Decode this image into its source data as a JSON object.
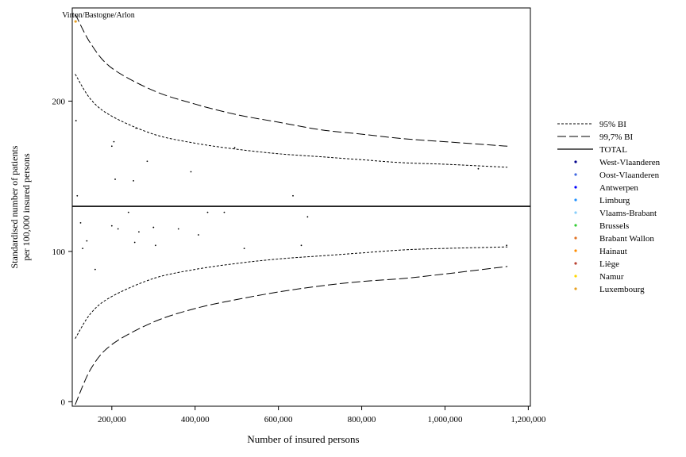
{
  "chart_data": {
    "type": "scatter",
    "title": "",
    "xlabel": "Number of insured persons",
    "ylabel_lines": [
      "Standardised number of patients",
      "per 100,000 insured persons"
    ],
    "xlim": [
      105000,
      1205000
    ],
    "ylim": [
      -3,
      262
    ],
    "x_ticks": [
      200000,
      400000,
      600000,
      800000,
      1000000,
      1200000
    ],
    "x_tick_labels": [
      "200,000",
      "400,000",
      "600,000",
      "800,000",
      "1,000,000",
      "1,200,000"
    ],
    "y_ticks": [
      0,
      100,
      200
    ],
    "y_tick_labels": [
      "0",
      "100",
      "200"
    ],
    "grid": false,
    "legend_position": "right",
    "total": {
      "name": "TOTAL",
      "value": 130
    },
    "bands": [
      {
        "name": "95% BI",
        "dash": "dotted",
        "upper": [
          [
            112000,
            218
          ],
          [
            150000,
            201
          ],
          [
            200000,
            190
          ],
          [
            300000,
            178
          ],
          [
            400000,
            172
          ],
          [
            500000,
            168
          ],
          [
            600000,
            165
          ],
          [
            700000,
            163
          ],
          [
            800000,
            161
          ],
          [
            900000,
            159
          ],
          [
            1000000,
            158
          ],
          [
            1150000,
            156
          ]
        ],
        "lower": [
          [
            112000,
            42
          ],
          [
            150000,
            59
          ],
          [
            200000,
            70
          ],
          [
            300000,
            82
          ],
          [
            400000,
            88
          ],
          [
            500000,
            92
          ],
          [
            600000,
            95
          ],
          [
            700000,
            97
          ],
          [
            800000,
            99
          ],
          [
            900000,
            101
          ],
          [
            1000000,
            102
          ],
          [
            1150000,
            103
          ]
        ]
      },
      {
        "name": "99,7% BI",
        "dash": "long-dash",
        "upper": [
          [
            112000,
            258
          ],
          [
            150000,
            238
          ],
          [
            200000,
            222
          ],
          [
            300000,
            207
          ],
          [
            400000,
            198
          ],
          [
            500000,
            191
          ],
          [
            600000,
            186
          ],
          [
            700000,
            181
          ],
          [
            800000,
            178
          ],
          [
            900000,
            175
          ],
          [
            1000000,
            173
          ],
          [
            1150000,
            170
          ]
        ],
        "lower": [
          [
            112000,
            -2
          ],
          [
            150000,
            22
          ],
          [
            200000,
            38
          ],
          [
            300000,
            53
          ],
          [
            400000,
            62
          ],
          [
            500000,
            68
          ],
          [
            600000,
            73
          ],
          [
            700000,
            77
          ],
          [
            800000,
            80
          ],
          [
            900000,
            82
          ],
          [
            1000000,
            85
          ],
          [
            1150000,
            90
          ]
        ]
      }
    ],
    "series": [
      {
        "name": "West-Vlaanderen",
        "color": "#00008b",
        "points": []
      },
      {
        "name": "Oost-Vlaanderen",
        "color": "#4169e1",
        "points": []
      },
      {
        "name": "Antwerpen",
        "color": "#0000ff",
        "points": []
      },
      {
        "name": "Limburg",
        "color": "#1e90ff",
        "points": []
      },
      {
        "name": "Vlaams-Brabant",
        "color": "#87cefa",
        "points": []
      },
      {
        "name": "Brussels",
        "color": "#32cd32",
        "points": []
      },
      {
        "name": "Brabant Wallon",
        "color": "#e07020",
        "points": []
      },
      {
        "name": "Hainaut",
        "color": "#ff8c00",
        "points": []
      },
      {
        "name": "Liège",
        "color": "#b84030",
        "points": []
      },
      {
        "name": "Namur",
        "color": "#ffd700",
        "points": []
      },
      {
        "name": "Luxembourg",
        "color": "#e8a020",
        "points": [
          [
            113000,
            253
          ]
        ]
      }
    ],
    "point_annotation": {
      "text": "Virton/Bastogne/Arlon",
      "x": 113000,
      "y": 253
    },
    "points": [
      [
        114000,
        187
      ],
      [
        117000,
        137
      ],
      [
        125000,
        119
      ],
      [
        130000,
        102
      ],
      [
        140000,
        107
      ],
      [
        160000,
        88
      ],
      [
        200000,
        170
      ],
      [
        200000,
        117
      ],
      [
        205000,
        173
      ],
      [
        208000,
        148
      ],
      [
        215000,
        115
      ],
      [
        240000,
        126
      ],
      [
        252000,
        147
      ],
      [
        255000,
        106
      ],
      [
        258000,
        182
      ],
      [
        265000,
        113
      ],
      [
        285000,
        160
      ],
      [
        300000,
        116
      ],
      [
        305000,
        104
      ],
      [
        360000,
        115
      ],
      [
        390000,
        153
      ],
      [
        408000,
        111
      ],
      [
        430000,
        126
      ],
      [
        470000,
        126
      ],
      [
        495000,
        169
      ],
      [
        518000,
        102
      ],
      [
        635000,
        137
      ],
      [
        655000,
        104
      ],
      [
        670000,
        123
      ],
      [
        1080000,
        155
      ],
      [
        1148000,
        104
      ]
    ]
  }
}
